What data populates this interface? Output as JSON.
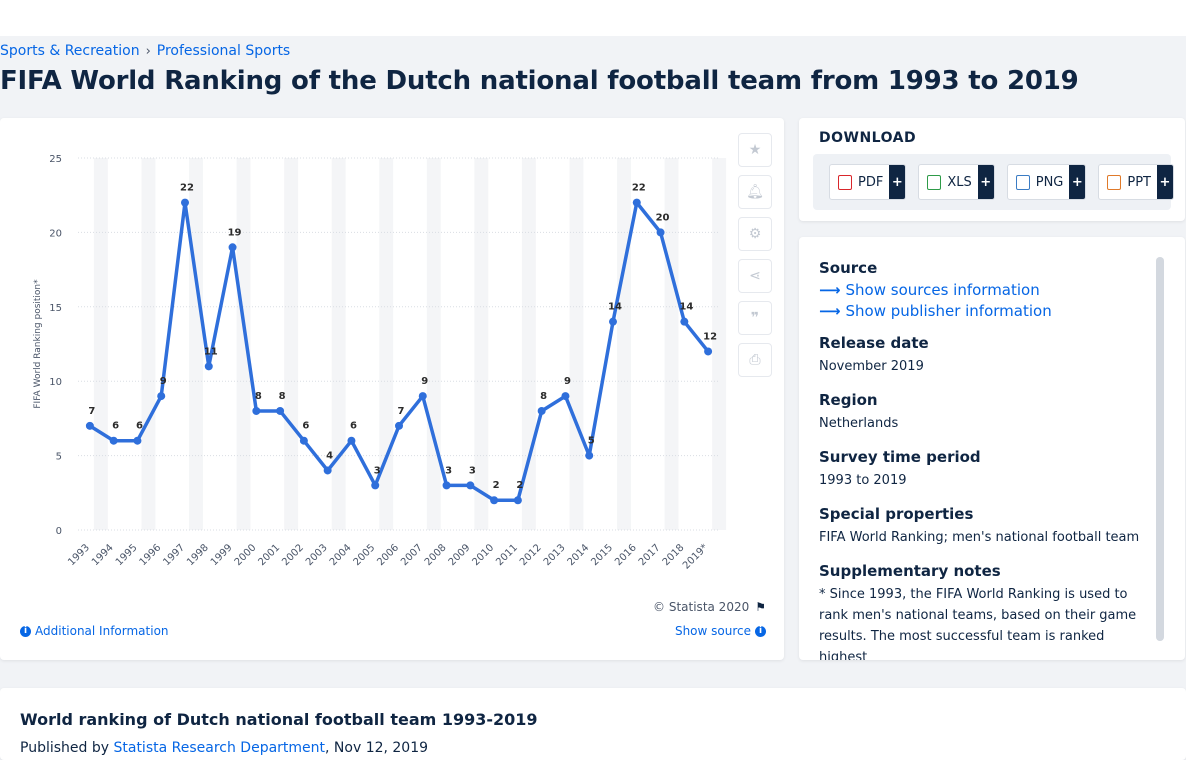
{
  "breadcrumb": {
    "items": [
      "Sports & Recreation",
      "Professional Sports"
    ],
    "separator": "›"
  },
  "page_title": "FIFA World Ranking of the Dutch national football team from 1993 to 2019",
  "tools": {
    "star": "star-icon",
    "bell": "bell-icon",
    "settings": "gear-icon",
    "share": "share-icon",
    "cite": "quote-icon",
    "print": "print-icon"
  },
  "chart_footer": {
    "copyright": "© Statista 2020",
    "additional_info": "Additional Information",
    "show_source": "Show source"
  },
  "download": {
    "title": "DOWNLOAD",
    "buttons": [
      {
        "label": "PDF",
        "plus": "+",
        "color": "#d9262b"
      },
      {
        "label": "XLS",
        "plus": "+",
        "color": "#2e9b48"
      },
      {
        "label": "PNG",
        "plus": "+",
        "color": "#3b7cc4"
      },
      {
        "label": "PPT",
        "plus": "+",
        "color": "#e07a2a"
      }
    ]
  },
  "info": {
    "source_heading": "Source",
    "source_link": "Show sources information",
    "publisher_link": "Show publisher information",
    "release_heading": "Release date",
    "release_value": "November 2019",
    "region_heading": "Region",
    "region_value": "Netherlands",
    "period_heading": "Survey time period",
    "period_value": "1993 to 2019",
    "special_heading": "Special properties",
    "special_value": "FIFA World Ranking; men's national football team",
    "notes_heading": "Supplementary notes",
    "notes_value": "* Since 1993, the FIFA World Ranking is used to rank men's national teams, based on their game results. The most successful team is ranked highest"
  },
  "bottom": {
    "title": "World ranking of Dutch national football team 1993-2019",
    "published_prefix": "Published by",
    "publisher": "Statista Research Department",
    "date": ", Nov 12, 2019"
  },
  "chart_data": {
    "type": "line",
    "ylabel": "FIFA World Ranking position*",
    "xlabel": "",
    "ylim": [
      0,
      25
    ],
    "yticks": [
      0,
      5,
      10,
      15,
      20,
      25
    ],
    "grid": true,
    "color": "#2f6fdb",
    "categories": [
      "1993",
      "1994",
      "1995",
      "1996",
      "1997",
      "1998",
      "1999",
      "2000",
      "2001",
      "2002",
      "2003",
      "2004",
      "2005",
      "2006",
      "2007",
      "2008",
      "2009",
      "2010",
      "2011",
      "2012",
      "2013",
      "2014",
      "2015",
      "2016",
      "2017",
      "2018",
      "2019*"
    ],
    "values": [
      7,
      6,
      6,
      9,
      22,
      11,
      19,
      8,
      8,
      6,
      4,
      6,
      3,
      7,
      9,
      3,
      3,
      2,
      2,
      8,
      9,
      5,
      14,
      22,
      20,
      14,
      12
    ]
  }
}
